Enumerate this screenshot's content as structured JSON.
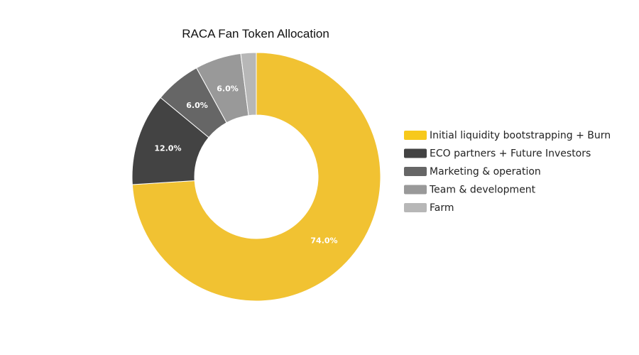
{
  "chart_data": {
    "type": "pie",
    "variant": "donut",
    "title": "RACA Fan Token Allocation",
    "legend_position": "right",
    "slices": [
      {
        "label": "Initial liquidity bootstrapping  + Burn",
        "value": 74.0,
        "display": "74.0%",
        "color": "#F1C232",
        "legend_color": "#F7C91B"
      },
      {
        "label": "ECO partners + Future Investors",
        "value": 12.0,
        "display": "12.0%",
        "color": "#434343",
        "legend_color": "#434343"
      },
      {
        "label": "Marketing & operation",
        "value": 6.0,
        "display": "6.0%",
        "color": "#666666",
        "legend_color": "#666666"
      },
      {
        "label": "Team & development",
        "value": 6.0,
        "display": "6.0%",
        "color": "#999999",
        "legend_color": "#999999"
      },
      {
        "label": "Farm",
        "value": 2.0,
        "display": "",
        "color": "#B7B7B7",
        "legend_color": "#B7B7B7"
      }
    ]
  }
}
